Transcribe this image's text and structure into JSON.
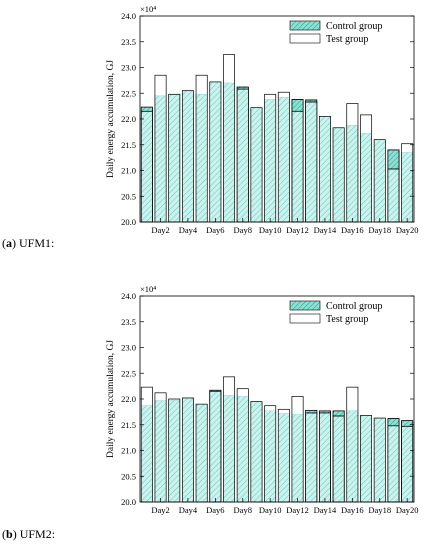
{
  "chart_data": [
    {
      "type": "bar",
      "caption_letter": "a",
      "caption_text": "UFM1:",
      "multiplier": "×10⁴",
      "xlabel": "",
      "ylabel": "Daily energy accumulation, GJ",
      "ylim": [
        20.0,
        24.0
      ],
      "yticks": [
        "20.0",
        "20.5",
        "21.0",
        "21.5",
        "22.0",
        "22.5",
        "23.0",
        "23.5",
        "24.0"
      ],
      "xtick_labels": [
        "Day2",
        "Day4",
        "Day6",
        "Day8",
        "Day10",
        "Day12",
        "Day14",
        "Day16",
        "Day18",
        "Day20"
      ],
      "categories": [
        "Day1",
        "Day2",
        "Day3",
        "Day4",
        "Day5",
        "Day6",
        "Day7",
        "Day8",
        "Day9",
        "Day10",
        "Day11",
        "Day12",
        "Day13",
        "Day14",
        "Day15",
        "Day16",
        "Day17",
        "Day18",
        "Day19",
        "Day20"
      ],
      "legend_position": "top-right",
      "series": [
        {
          "name": "Control group",
          "values": [
            22.23,
            22.45,
            22.47,
            22.55,
            22.48,
            22.72,
            22.7,
            22.62,
            22.22,
            22.38,
            22.42,
            22.38,
            22.37,
            22.05,
            21.83,
            21.88,
            21.72,
            21.58,
            21.4,
            21.35
          ]
        },
        {
          "name": "Test group",
          "values": [
            22.15,
            22.85,
            22.48,
            22.55,
            22.85,
            22.72,
            23.25,
            22.58,
            22.22,
            22.48,
            22.52,
            22.15,
            22.33,
            22.05,
            21.83,
            22.3,
            22.08,
            21.6,
            21.03,
            21.52
          ]
        }
      ]
    },
    {
      "type": "bar",
      "caption_letter": "b",
      "caption_text": "UFM2:",
      "multiplier": "×10⁴",
      "xlabel": "",
      "ylabel": "Daily energy accumulation, GJ",
      "ylim": [
        20.0,
        24.0
      ],
      "yticks": [
        "20.0",
        "20.5",
        "21.0",
        "21.5",
        "22.0",
        "22.5",
        "23.0",
        "23.5",
        "24.0"
      ],
      "xtick_labels": [
        "Day2",
        "Day4",
        "Day6",
        "Day8",
        "Day10",
        "Day12",
        "Day14",
        "Day16",
        "Day18",
        "Day20"
      ],
      "categories": [
        "Day1",
        "Day2",
        "Day3",
        "Day4",
        "Day5",
        "Day6",
        "Day7",
        "Day8",
        "Day9",
        "Day10",
        "Day11",
        "Day12",
        "Day13",
        "Day14",
        "Day15",
        "Day16",
        "Day17",
        "Day18",
        "Day19",
        "Day20"
      ],
      "legend_position": "top-right",
      "series": [
        {
          "name": "Control group",
          "values": [
            21.87,
            21.97,
            21.98,
            22.02,
            21.9,
            22.17,
            22.07,
            22.05,
            21.95,
            21.77,
            21.72,
            21.7,
            21.78,
            21.77,
            21.77,
            21.77,
            21.68,
            21.63,
            21.62,
            21.58
          ]
        },
        {
          "name": "Test group",
          "values": [
            22.23,
            22.12,
            22.0,
            22.02,
            21.9,
            22.15,
            22.43,
            22.2,
            21.95,
            21.87,
            21.8,
            22.05,
            21.73,
            21.73,
            21.67,
            22.23,
            21.68,
            21.63,
            21.48,
            21.47
          ]
        }
      ]
    }
  ]
}
